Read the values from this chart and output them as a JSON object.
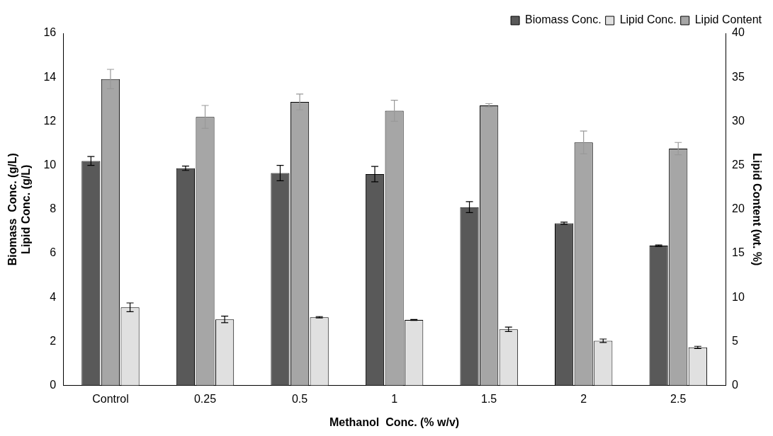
{
  "chart_data": {
    "type": "bar",
    "xlabel": "Methanol  Conc. (% w/v)",
    "ylabel": "Biomass  Conc. (g/L)\nLipid Conc. (g/L)",
    "y2label": "Lipid Content (wt. %)",
    "categories": [
      "Control",
      "0.25",
      "0.5",
      "1",
      "1.5",
      "2",
      "2.5"
    ],
    "series": [
      {
        "name": "Biomass Conc.",
        "color": "#595959",
        "values": [
          10.2,
          9.87,
          9.65,
          9.6,
          8.1,
          7.37,
          6.35
        ],
        "errors": [
          0.2,
          0.1,
          0.35,
          0.35,
          0.25,
          0.05,
          0.03
        ]
      },
      {
        "name": "Lipid Content",
        "color": "#a6a6a6",
        "axis": "y2",
        "values": [
          34.8,
          30.5,
          32.2,
          31.2,
          31.8,
          27.6,
          26.9
        ],
        "errors": [
          1.1,
          1.3,
          0.9,
          1.2,
          0.2,
          1.3,
          0.7
        ]
      },
      {
        "name": "Lipid Conc.",
        "color": "#e0e0e0",
        "values": [
          3.55,
          3.0,
          3.1,
          2.98,
          2.55,
          2.03,
          1.73
        ],
        "errors": [
          0.2,
          0.15,
          0.03,
          0.02,
          0.1,
          0.08,
          0.05
        ]
      }
    ],
    "ylim": [
      0,
      16
    ],
    "yticks": [
      0,
      2,
      4,
      6,
      8,
      10,
      12,
      14,
      16
    ],
    "y2lim": [
      0,
      40
    ],
    "y2ticks": [
      0,
      5,
      10,
      15,
      20,
      25,
      30,
      35,
      40
    ],
    "grid": false,
    "legend": "top right"
  }
}
